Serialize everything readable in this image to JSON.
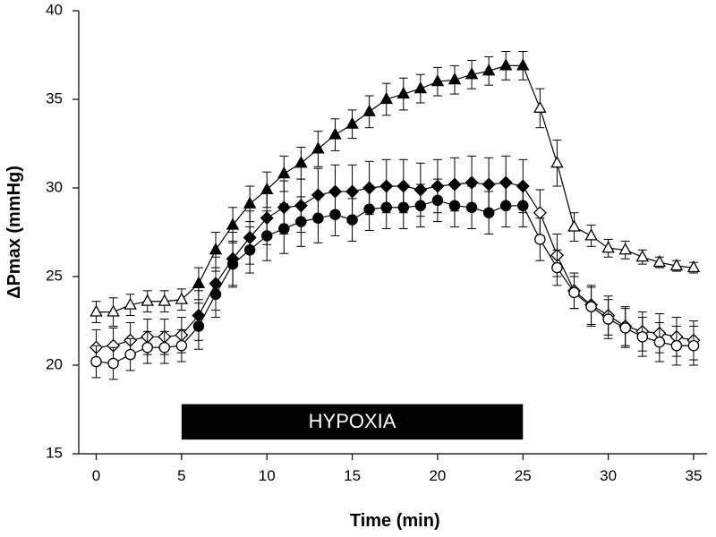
{
  "chart_data": {
    "type": "line",
    "title": "",
    "xlabel": "Time (min)",
    "ylabel": "ΔPmax (mmHg)",
    "xlim": [
      0,
      35
    ],
    "ylim": [
      15,
      40
    ],
    "x_ticks": [
      "0",
      "5",
      "10",
      "15",
      "20",
      "25",
      "30",
      "35"
    ],
    "y_ticks": [
      "15",
      "20",
      "25",
      "30",
      "35",
      "40"
    ],
    "annotation": {
      "text": "HYPOXIA",
      "x_start": 5,
      "x_end": 25
    },
    "x": [
      0,
      1,
      2,
      3,
      4,
      5,
      6,
      7,
      8,
      9,
      10,
      11,
      12,
      13,
      14,
      15,
      16,
      17,
      18,
      19,
      20,
      21,
      22,
      23,
      24,
      25,
      26,
      27,
      28,
      29,
      30,
      31,
      32,
      33,
      34,
      35
    ],
    "series": [
      {
        "marker": "triangle",
        "marker_fill": [
          "open",
          "open",
          "open",
          "open",
          "open",
          "open",
          "filled",
          "filled",
          "filled",
          "filled",
          "filled",
          "filled",
          "filled",
          "filled",
          "filled",
          "filled",
          "filled",
          "filled",
          "filled",
          "filled",
          "filled",
          "filled",
          "filled",
          "filled",
          "filled",
          "filled",
          "open",
          "open",
          "open",
          "open",
          "open",
          "open",
          "open",
          "open",
          "open",
          "open"
        ],
        "values": [
          23.0,
          23.0,
          23.4,
          23.6,
          23.6,
          23.7,
          24.6,
          26.5,
          27.9,
          29.1,
          29.9,
          30.8,
          31.4,
          32.2,
          33.0,
          33.6,
          34.3,
          35.0,
          35.3,
          35.6,
          36.0,
          36.1,
          36.4,
          36.6,
          36.9,
          36.9,
          34.5,
          31.4,
          27.8,
          27.3,
          26.6,
          26.5,
          26.1,
          25.8,
          25.6,
          25.5
        ],
        "errors": [
          0.6,
          0.8,
          0.6,
          0.6,
          0.6,
          0.6,
          0.9,
          1.0,
          1.0,
          1.0,
          1.0,
          1.0,
          0.9,
          1.0,
          0.9,
          0.8,
          0.9,
          0.9,
          0.9,
          0.8,
          0.8,
          0.8,
          0.8,
          0.8,
          0.8,
          0.8,
          1.1,
          1.3,
          0.8,
          0.6,
          0.5,
          0.5,
          0.4,
          0.3,
          0.3,
          0.3
        ]
      },
      {
        "marker": "diamond",
        "marker_fill": [
          "open",
          "open",
          "open",
          "open",
          "open",
          "open",
          "filled",
          "filled",
          "filled",
          "filled",
          "filled",
          "filled",
          "filled",
          "filled",
          "filled",
          "filled",
          "filled",
          "filled",
          "filled",
          "filled",
          "filled",
          "filled",
          "filled",
          "filled",
          "filled",
          "filled",
          "open",
          "open",
          "open",
          "open",
          "open",
          "open",
          "open",
          "open",
          "open",
          "open"
        ],
        "values": [
          21.0,
          21.1,
          21.4,
          21.6,
          21.6,
          21.7,
          22.8,
          24.6,
          26.0,
          27.2,
          28.3,
          28.9,
          29.0,
          29.6,
          29.8,
          29.8,
          30.0,
          30.1,
          30.1,
          29.9,
          30.1,
          30.2,
          30.3,
          30.2,
          30.3,
          30.1,
          28.6,
          26.2,
          24.2,
          23.4,
          22.8,
          22.2,
          21.9,
          21.8,
          21.6,
          21.4
        ],
        "errors": [
          1.0,
          1.0,
          1.0,
          1.0,
          1.0,
          1.0,
          1.4,
          1.5,
          1.5,
          1.5,
          1.5,
          1.5,
          1.5,
          1.5,
          1.5,
          1.5,
          1.5,
          1.5,
          1.5,
          1.5,
          1.5,
          1.5,
          1.5,
          1.5,
          1.5,
          1.5,
          1.3,
          1.2,
          1.0,
          1.1,
          1.1,
          1.1,
          1.1,
          1.1,
          1.1,
          1.1
        ]
      },
      {
        "marker": "circle",
        "marker_fill": [
          "open",
          "open",
          "open",
          "open",
          "open",
          "open",
          "filled",
          "filled",
          "filled",
          "filled",
          "filled",
          "filled",
          "filled",
          "filled",
          "filled",
          "filled",
          "filled",
          "filled",
          "filled",
          "filled",
          "filled",
          "filled",
          "filled",
          "filled",
          "filled",
          "filled",
          "open",
          "open",
          "open",
          "open",
          "open",
          "open",
          "open",
          "open",
          "open",
          "open"
        ],
        "values": [
          20.2,
          20.1,
          20.6,
          21.0,
          21.0,
          21.1,
          22.2,
          24.0,
          25.7,
          26.5,
          27.3,
          27.7,
          28.1,
          28.3,
          28.5,
          28.2,
          28.8,
          28.9,
          28.9,
          29.0,
          29.3,
          29.0,
          28.9,
          28.6,
          29.0,
          29.0,
          27.1,
          25.5,
          24.1,
          23.3,
          22.6,
          22.1,
          21.6,
          21.3,
          21.1,
          21.1
        ],
        "errors": [
          0.9,
          0.9,
          0.9,
          0.9,
          0.9,
          0.9,
          1.3,
          1.3,
          1.3,
          1.3,
          1.4,
          1.4,
          1.4,
          1.4,
          1.2,
          1.2,
          1.2,
          1.2,
          1.2,
          1.2,
          1.2,
          1.2,
          1.2,
          1.2,
          1.2,
          1.2,
          1.2,
          1.0,
          0.9,
          1.1,
          1.1,
          1.1,
          1.1,
          1.1,
          1.1,
          1.1
        ]
      }
    ]
  }
}
